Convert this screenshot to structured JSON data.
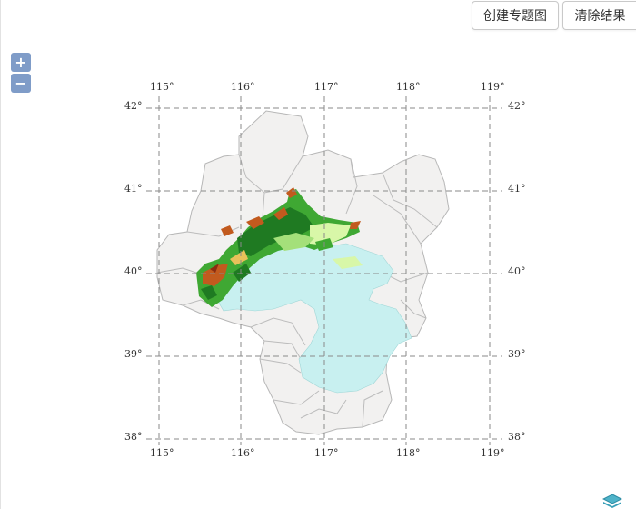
{
  "toolbar": {
    "create_label": "创建专题图",
    "clear_label": "清除结果"
  },
  "zoom": {
    "in_label": "+",
    "out_label": "−"
  },
  "graticule": {
    "lon_top": [
      "115°",
      "116°",
      "117°",
      "118°",
      "119°"
    ],
    "lon_bottom": [
      "115°",
      "116°",
      "117°",
      "118°",
      "119°"
    ],
    "lat_left": [
      "42°",
      "41°",
      "40°",
      "39°",
      "38°"
    ],
    "lat_right": [
      "42°",
      "41°",
      "40°",
      "39°",
      "38°"
    ]
  },
  "colors": {
    "region_fill": "#f2f1f0",
    "region_border": "#b7b7b7",
    "water": "#c8f0f0",
    "elev_low": "#d8f7a8",
    "elev_mid": "#3fa833",
    "elev_high": "#1f7a22",
    "elev_peak": "#c25a1e",
    "grid": "#8a8a8a"
  },
  "icons": {
    "layer_switch": "layers-icon"
  }
}
